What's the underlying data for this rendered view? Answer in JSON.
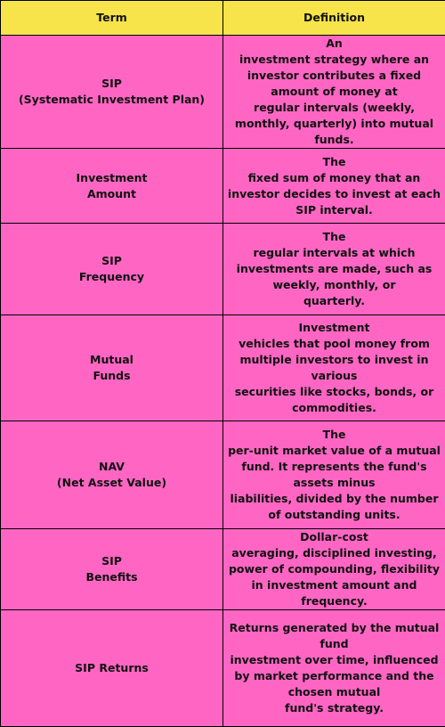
{
  "table": {
    "headers": [
      "Term",
      "Definition"
    ],
    "rows": [
      {
        "term": "SIP\n(Systematic Investment Plan)",
        "definition": "An\ninvestment strategy where an investor contributes a fixed amount of money at\nregular intervals (weekly, monthly, quarterly) into mutual funds."
      },
      {
        "term": "Investment\nAmount",
        "definition": "The\nfixed sum of money that an investor decides to invest at each SIP interval."
      },
      {
        "term": "SIP\nFrequency",
        "definition": "The\nregular intervals at which investments are made, such as weekly, monthly, or\nquarterly."
      },
      {
        "term": "Mutual\nFunds",
        "definition": "Investment\nvehicles that pool money from multiple investors to invest in various\nsecurities like stocks, bonds, or commodities."
      },
      {
        "term": "NAV\n(Net Asset Value)",
        "definition": "The\nper-unit market value of a mutual fund. It represents the fund's assets minus\nliabilities, divided by the number of outstanding units."
      },
      {
        "term": "SIP\nBenefits",
        "definition": "Dollar-cost\naveraging, disciplined investing, power of compounding, flexibility in investment amount and frequency."
      },
      {
        "term": "SIP Returns",
        "definition": "Returns generated by the mutual fund\ninvestment over time, influenced by market performance and the chosen mutual\nfund's strategy."
      }
    ]
  },
  "colors": {
    "header_background": "#f7e44a",
    "row_background": "#ff66c4",
    "border": "#000000"
  }
}
